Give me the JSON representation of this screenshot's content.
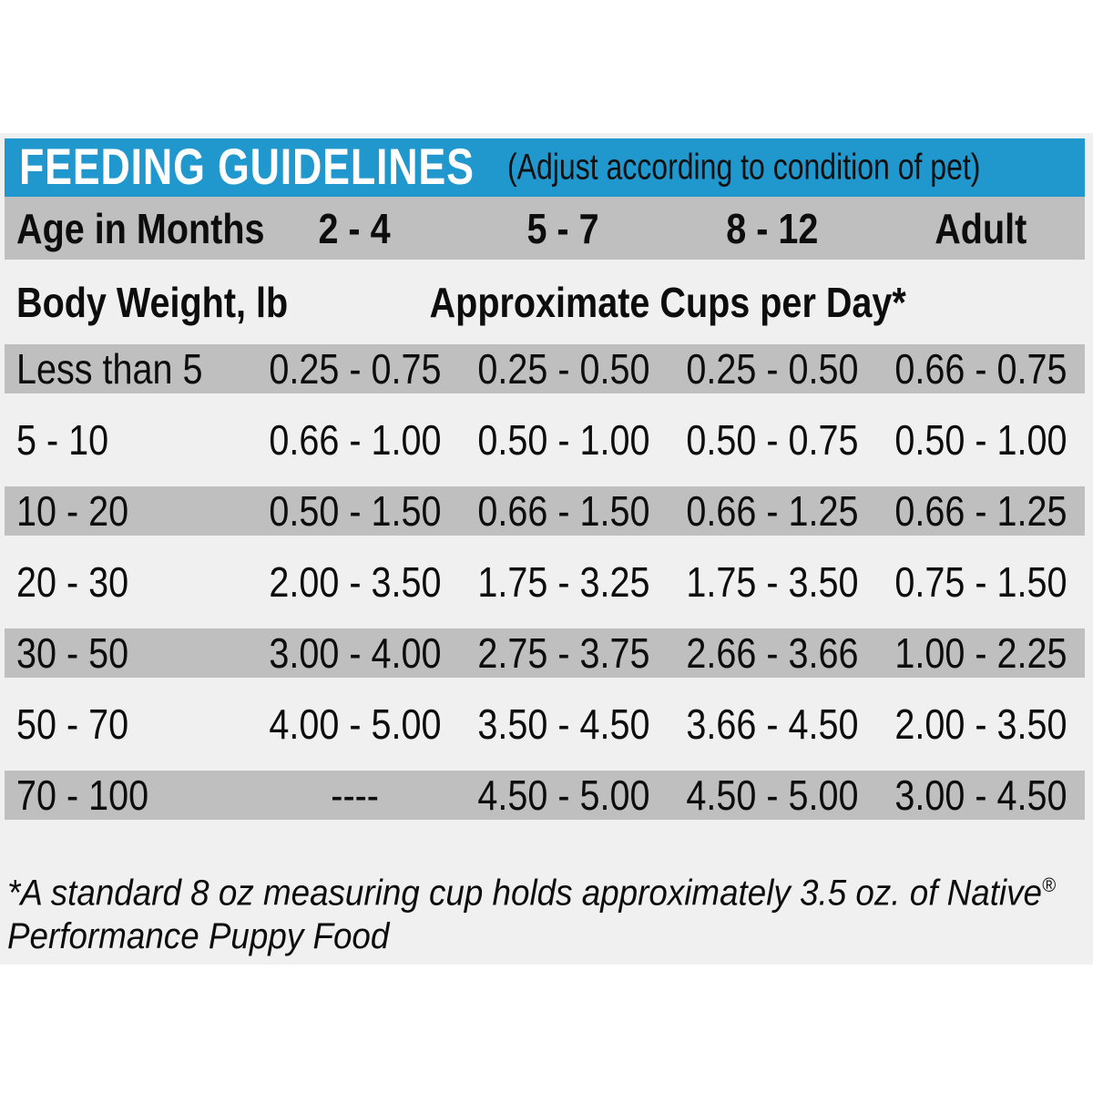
{
  "header": {
    "title": "FEEDING GUIDELINES",
    "subtitle": "(Adjust according to condition of pet)"
  },
  "age_header": {
    "label": "Age in Months",
    "columns": [
      "2 - 4",
      "5 - 7",
      "8 - 12",
      "Adult"
    ]
  },
  "subheader": {
    "left": "Body Weight, lb",
    "right": "Approximate Cups per Day*"
  },
  "table": {
    "rows": [
      {
        "label": "Less than 5",
        "values": [
          "0.25 - 0.75",
          "0.25 - 0.50",
          "0.25 - 0.50",
          "0.66 - 0.75"
        ]
      },
      {
        "label": "5 - 10",
        "values": [
          "0.66 - 1.00",
          "0.50 - 1.00",
          "0.50 - 0.75",
          "0.50 - 1.00"
        ]
      },
      {
        "label": "10 - 20",
        "values": [
          "0.50 - 1.50",
          "0.66 - 1.50",
          "0.66 - 1.25",
          "0.66 - 1.25"
        ]
      },
      {
        "label": "20 - 30",
        "values": [
          "2.00 - 3.50",
          "1.75 - 3.25",
          "1.75 - 3.50",
          "0.75 - 1.50"
        ]
      },
      {
        "label": "30 - 50",
        "values": [
          "3.00 - 4.00",
          "2.75 - 3.75",
          "2.66 - 3.66",
          "1.00 - 2.25"
        ]
      },
      {
        "label": "50 - 70",
        "values": [
          "4.00 - 5.00",
          "3.50 - 4.50",
          "3.66 - 4.50",
          "2.00 - 3.50"
        ]
      },
      {
        "label": "70 - 100",
        "values": [
          "----",
          "4.50 - 5.00",
          "4.50 - 5.00",
          "3.00 - 4.50"
        ]
      }
    ]
  },
  "footnote": {
    "line1": "*A standard 8 oz measuring cup holds approximately 3.5 oz. of Native",
    "registered_mark": "®",
    "line2": "Performance Puppy Food"
  },
  "colors": {
    "header_blue": "#2097cd",
    "row_gray": "#bfbfbf",
    "backdrop_gray": "#f0f0f0",
    "title_white": "#ffffff",
    "text_black": "#0d0d0d"
  }
}
